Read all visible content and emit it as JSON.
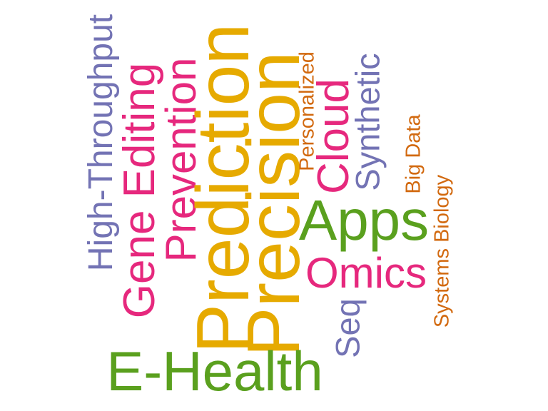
{
  "words": {
    "prediction": {
      "text": "Prediction",
      "color": "#E6AA00"
    },
    "precision": {
      "text": "Precision",
      "color": "#E6AA00"
    },
    "e_health": {
      "text": "E-Health",
      "color": "#5AA01E"
    },
    "apps": {
      "text": "Apps",
      "color": "#5AA01E"
    },
    "gene_editing": {
      "text": "Gene Editing",
      "color": "#E6287D"
    },
    "prevention": {
      "text": "Prevention",
      "color": "#E6287D"
    },
    "omics": {
      "text": "Omics",
      "color": "#E6287D"
    },
    "cloud": {
      "text": "Cloud",
      "color": "#E6287D"
    },
    "high_throughput": {
      "text": "High-Throughput",
      "color": "#7373B4"
    },
    "synthetic": {
      "text": "Synthetic",
      "color": "#7373B4"
    },
    "seq": {
      "text": "Seq",
      "color": "#7373B4"
    },
    "personalized": {
      "text": "Personalized",
      "color": "#D2690F"
    },
    "big_data": {
      "text": "Big Data",
      "color": "#D2690F"
    },
    "systems_biology": {
      "text": "Systems Biology",
      "color": "#D2690F"
    }
  }
}
